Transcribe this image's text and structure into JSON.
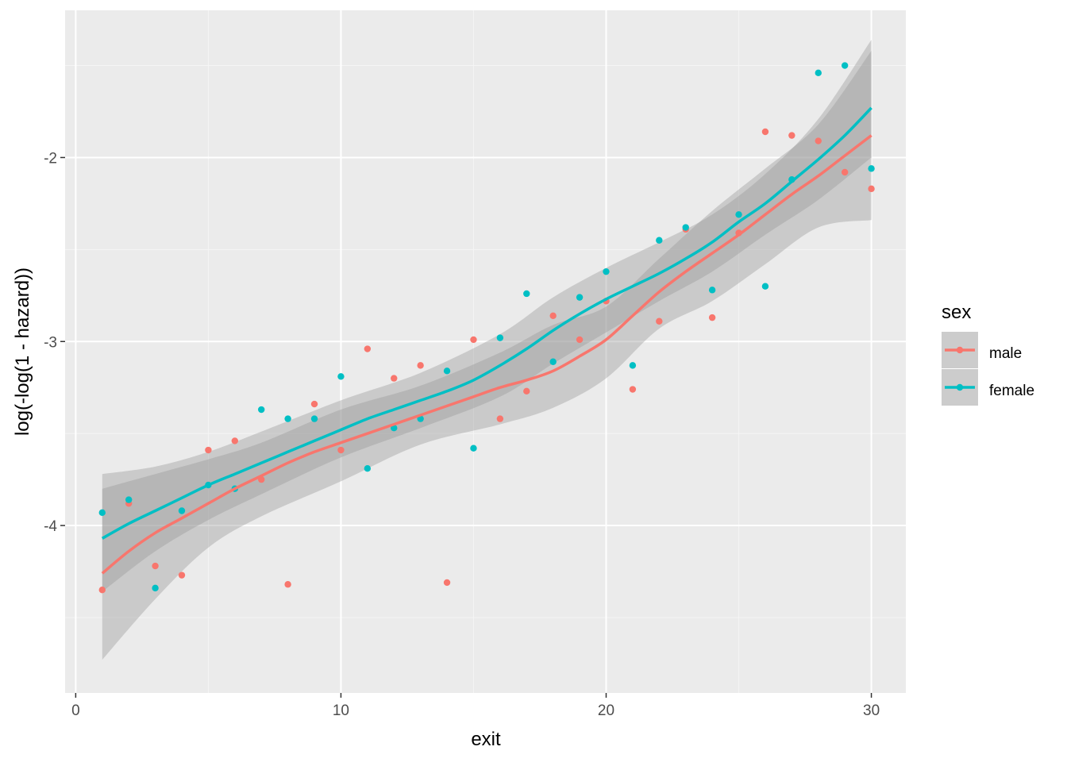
{
  "chart_data": {
    "type": "scatter",
    "xlabel": "exit",
    "ylabel": "log(-log(1 - hazard))",
    "xlim": [
      -0.4,
      31.3
    ],
    "ylim": [
      -4.91,
      -1.2
    ],
    "x_ticks": [
      0,
      10,
      20,
      30
    ],
    "x_tick_labels": [
      "0",
      "10",
      "20",
      "30"
    ],
    "y_ticks": [
      -4,
      -3,
      -2
    ],
    "y_tick_labels": [
      "-4",
      "-3",
      "-2"
    ],
    "grid": true,
    "smoother": "loess with confidence band",
    "legend": {
      "title": "sex",
      "position": "right"
    },
    "series": [
      {
        "name": "male",
        "color": "#F8766D",
        "points": [
          {
            "x": 1,
            "y": -4.35
          },
          {
            "x": 2,
            "y": -3.88
          },
          {
            "x": 3,
            "y": -4.22
          },
          {
            "x": 4,
            "y": -4.27
          },
          {
            "x": 5,
            "y": -3.59
          },
          {
            "x": 6,
            "y": -3.54
          },
          {
            "x": 7,
            "y": -3.75
          },
          {
            "x": 8,
            "y": -4.32
          },
          {
            "x": 9,
            "y": -3.34
          },
          {
            "x": 10,
            "y": -3.59
          },
          {
            "x": 11,
            "y": -3.04
          },
          {
            "x": 12,
            "y": -3.2
          },
          {
            "x": 13,
            "y": -3.13
          },
          {
            "x": 14,
            "y": -4.31
          },
          {
            "x": 15,
            "y": -2.99
          },
          {
            "x": 16,
            "y": -3.42
          },
          {
            "x": 17,
            "y": -3.27
          },
          {
            "x": 18,
            "y": -2.86
          },
          {
            "x": 19,
            "y": -2.99
          },
          {
            "x": 20,
            "y": -2.78
          },
          {
            "x": 21,
            "y": -3.26
          },
          {
            "x": 22,
            "y": -2.89
          },
          {
            "x": 23,
            "y": -2.39
          },
          {
            "x": 24,
            "y": -2.87
          },
          {
            "x": 25,
            "y": -2.41
          },
          {
            "x": 26,
            "y": -1.86
          },
          {
            "x": 27,
            "y": -1.88
          },
          {
            "x": 28,
            "y": -1.91
          },
          {
            "x": 29,
            "y": -2.08
          },
          {
            "x": 30,
            "y": -2.17
          }
        ],
        "smooth": [
          {
            "x": 1,
            "y": -4.26
          },
          {
            "x": 2,
            "y": -4.14
          },
          {
            "x": 3,
            "y": -4.04
          },
          {
            "x": 4,
            "y": -3.96
          },
          {
            "x": 5,
            "y": -3.88
          },
          {
            "x": 6,
            "y": -3.8
          },
          {
            "x": 7,
            "y": -3.73
          },
          {
            "x": 8,
            "y": -3.66
          },
          {
            "x": 9,
            "y": -3.6
          },
          {
            "x": 10,
            "y": -3.55
          },
          {
            "x": 11,
            "y": -3.5
          },
          {
            "x": 12,
            "y": -3.45
          },
          {
            "x": 13,
            "y": -3.4
          },
          {
            "x": 14,
            "y": -3.35
          },
          {
            "x": 15,
            "y": -3.3
          },
          {
            "x": 16,
            "y": -3.25
          },
          {
            "x": 17,
            "y": -3.21
          },
          {
            "x": 18,
            "y": -3.16
          },
          {
            "x": 19,
            "y": -3.08
          },
          {
            "x": 20,
            "y": -2.99
          },
          {
            "x": 21,
            "y": -2.86
          },
          {
            "x": 22,
            "y": -2.73
          },
          {
            "x": 23,
            "y": -2.62
          },
          {
            "x": 24,
            "y": -2.52
          },
          {
            "x": 25,
            "y": -2.42
          },
          {
            "x": 26,
            "y": -2.31
          },
          {
            "x": 27,
            "y": -2.2
          },
          {
            "x": 28,
            "y": -2.1
          },
          {
            "x": 29,
            "y": -1.99
          },
          {
            "x": 30,
            "y": -1.88
          }
        ],
        "band_low": [
          {
            "x": 1,
            "y": -4.73
          },
          {
            "x": 3,
            "y": -4.4
          },
          {
            "x": 5,
            "y": -4.12
          },
          {
            "x": 7,
            "y": -3.95
          },
          {
            "x": 10,
            "y": -3.76
          },
          {
            "x": 13,
            "y": -3.56
          },
          {
            "x": 16,
            "y": -3.45
          },
          {
            "x": 18,
            "y": -3.36
          },
          {
            "x": 20,
            "y": -3.2
          },
          {
            "x": 22,
            "y": -2.93
          },
          {
            "x": 24,
            "y": -2.78
          },
          {
            "x": 26,
            "y": -2.58
          },
          {
            "x": 28,
            "y": -2.38
          },
          {
            "x": 30,
            "y": -2.34
          }
        ],
        "band_high": [
          {
            "x": 1,
            "y": -3.8
          },
          {
            "x": 3,
            "y": -3.72
          },
          {
            "x": 5,
            "y": -3.64
          },
          {
            "x": 7,
            "y": -3.55
          },
          {
            "x": 10,
            "y": -3.37
          },
          {
            "x": 13,
            "y": -3.24
          },
          {
            "x": 16,
            "y": -3.06
          },
          {
            "x": 18,
            "y": -2.91
          },
          {
            "x": 20,
            "y": -2.81
          },
          {
            "x": 22,
            "y": -2.55
          },
          {
            "x": 24,
            "y": -2.29
          },
          {
            "x": 26,
            "y": -2.06
          },
          {
            "x": 28,
            "y": -1.82
          },
          {
            "x": 30,
            "y": -1.42
          }
        ]
      },
      {
        "name": "female",
        "color": "#00BFC4",
        "points": [
          {
            "x": 1,
            "y": -3.93
          },
          {
            "x": 2,
            "y": -3.86
          },
          {
            "x": 3,
            "y": -4.34
          },
          {
            "x": 4,
            "y": -3.92
          },
          {
            "x": 5,
            "y": -3.78
          },
          {
            "x": 6,
            "y": -3.8
          },
          {
            "x": 7,
            "y": -3.37
          },
          {
            "x": 8,
            "y": -3.42
          },
          {
            "x": 9,
            "y": -3.42
          },
          {
            "x": 10,
            "y": -3.19
          },
          {
            "x": 11,
            "y": -3.69
          },
          {
            "x": 12,
            "y": -3.47
          },
          {
            "x": 13,
            "y": -3.42
          },
          {
            "x": 14,
            "y": -3.16
          },
          {
            "x": 15,
            "y": -3.58
          },
          {
            "x": 16,
            "y": -2.98
          },
          {
            "x": 17,
            "y": -2.74
          },
          {
            "x": 18,
            "y": -3.11
          },
          {
            "x": 19,
            "y": -2.76
          },
          {
            "x": 20,
            "y": -2.62
          },
          {
            "x": 21,
            "y": -3.13
          },
          {
            "x": 22,
            "y": -2.45
          },
          {
            "x": 23,
            "y": -2.38
          },
          {
            "x": 24,
            "y": -2.72
          },
          {
            "x": 25,
            "y": -2.31
          },
          {
            "x": 26,
            "y": -2.7
          },
          {
            "x": 27,
            "y": -2.12
          },
          {
            "x": 28,
            "y": -1.54
          },
          {
            "x": 29,
            "y": -1.5
          },
          {
            "x": 30,
            "y": -2.06
          }
        ],
        "smooth": [
          {
            "x": 1,
            "y": -4.07
          },
          {
            "x": 2,
            "y": -3.99
          },
          {
            "x": 3,
            "y": -3.92
          },
          {
            "x": 4,
            "y": -3.85
          },
          {
            "x": 5,
            "y": -3.78
          },
          {
            "x": 6,
            "y": -3.72
          },
          {
            "x": 7,
            "y": -3.66
          },
          {
            "x": 8,
            "y": -3.6
          },
          {
            "x": 9,
            "y": -3.54
          },
          {
            "x": 10,
            "y": -3.48
          },
          {
            "x": 11,
            "y": -3.42
          },
          {
            "x": 12,
            "y": -3.37
          },
          {
            "x": 13,
            "y": -3.32
          },
          {
            "x": 14,
            "y": -3.27
          },
          {
            "x": 15,
            "y": -3.21
          },
          {
            "x": 16,
            "y": -3.13
          },
          {
            "x": 17,
            "y": -3.04
          },
          {
            "x": 18,
            "y": -2.94
          },
          {
            "x": 19,
            "y": -2.85
          },
          {
            "x": 20,
            "y": -2.77
          },
          {
            "x": 21,
            "y": -2.7
          },
          {
            "x": 22,
            "y": -2.63
          },
          {
            "x": 23,
            "y": -2.55
          },
          {
            "x": 24,
            "y": -2.46
          },
          {
            "x": 25,
            "y": -2.35
          },
          {
            "x": 26,
            "y": -2.25
          },
          {
            "x": 27,
            "y": -2.13
          },
          {
            "x": 28,
            "y": -2.01
          },
          {
            "x": 29,
            "y": -1.88
          },
          {
            "x": 30,
            "y": -1.73
          }
        ],
        "band_low": [
          {
            "x": 1,
            "y": -4.36
          },
          {
            "x": 3,
            "y": -4.14
          },
          {
            "x": 5,
            "y": -3.97
          },
          {
            "x": 7,
            "y": -3.83
          },
          {
            "x": 10,
            "y": -3.63
          },
          {
            "x": 13,
            "y": -3.47
          },
          {
            "x": 16,
            "y": -3.3
          },
          {
            "x": 18,
            "y": -3.12
          },
          {
            "x": 20,
            "y": -2.95
          },
          {
            "x": 22,
            "y": -2.78
          },
          {
            "x": 24,
            "y": -2.62
          },
          {
            "x": 26,
            "y": -2.42
          },
          {
            "x": 28,
            "y": -2.23
          },
          {
            "x": 30,
            "y": -2.0
          }
        ],
        "band_high": [
          {
            "x": 1,
            "y": -3.72
          },
          {
            "x": 3,
            "y": -3.68
          },
          {
            "x": 5,
            "y": -3.6
          },
          {
            "x": 7,
            "y": -3.49
          },
          {
            "x": 10,
            "y": -3.32
          },
          {
            "x": 13,
            "y": -3.17
          },
          {
            "x": 16,
            "y": -2.96
          },
          {
            "x": 18,
            "y": -2.76
          },
          {
            "x": 20,
            "y": -2.6
          },
          {
            "x": 22,
            "y": -2.46
          },
          {
            "x": 24,
            "y": -2.31
          },
          {
            "x": 26,
            "y": -2.09
          },
          {
            "x": 28,
            "y": -1.79
          },
          {
            "x": 30,
            "y": -1.36
          }
        ]
      }
    ]
  }
}
